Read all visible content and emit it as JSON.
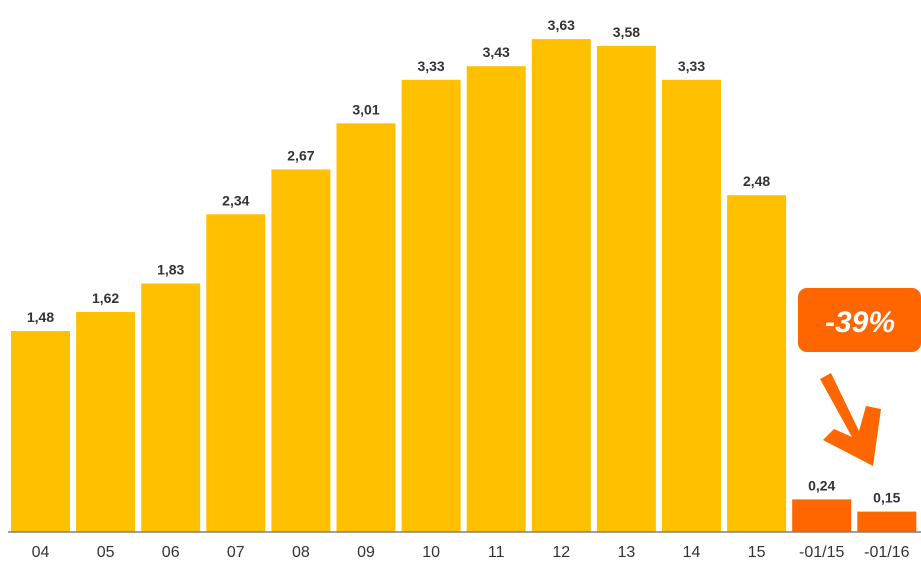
{
  "chart_data": {
    "type": "bar",
    "categories": [
      "04",
      "05",
      "06",
      "07",
      "08",
      "09",
      "10",
      "11",
      "12",
      "13",
      "14",
      "15",
      "-01/15",
      "-01/16"
    ],
    "values": [
      1.48,
      1.62,
      1.83,
      2.34,
      2.67,
      3.01,
      3.33,
      3.43,
      3.63,
      3.58,
      3.33,
      2.48,
      0.24,
      0.15
    ],
    "value_labels": [
      "1,48",
      "1,62",
      "1,83",
      "2,34",
      "2,67",
      "3,01",
      "3,33",
      "3,43",
      "3,63",
      "3,58",
      "3,33",
      "2,48",
      "0,24",
      "0,15"
    ],
    "bar_colors": [
      "#FFC000",
      "#FFC000",
      "#FFC000",
      "#FFC000",
      "#FFC000",
      "#FFC000",
      "#FFC000",
      "#FFC000",
      "#FFC000",
      "#FFC000",
      "#FFC000",
      "#FFC000",
      "#FF6600",
      "#FF6600"
    ],
    "ylim": [
      0,
      3.8
    ],
    "grid": false,
    "title": "",
    "xlabel": "",
    "ylabel": "",
    "annotation": {
      "text": "-39%",
      "color": "#FF6600",
      "text_color": "#FFFFFF",
      "points_to": "-01/16"
    }
  },
  "colors": {
    "primary_bar": "#FFC000",
    "highlight_bar": "#FF6600",
    "axis": "#808080",
    "label_text": "#333333"
  }
}
